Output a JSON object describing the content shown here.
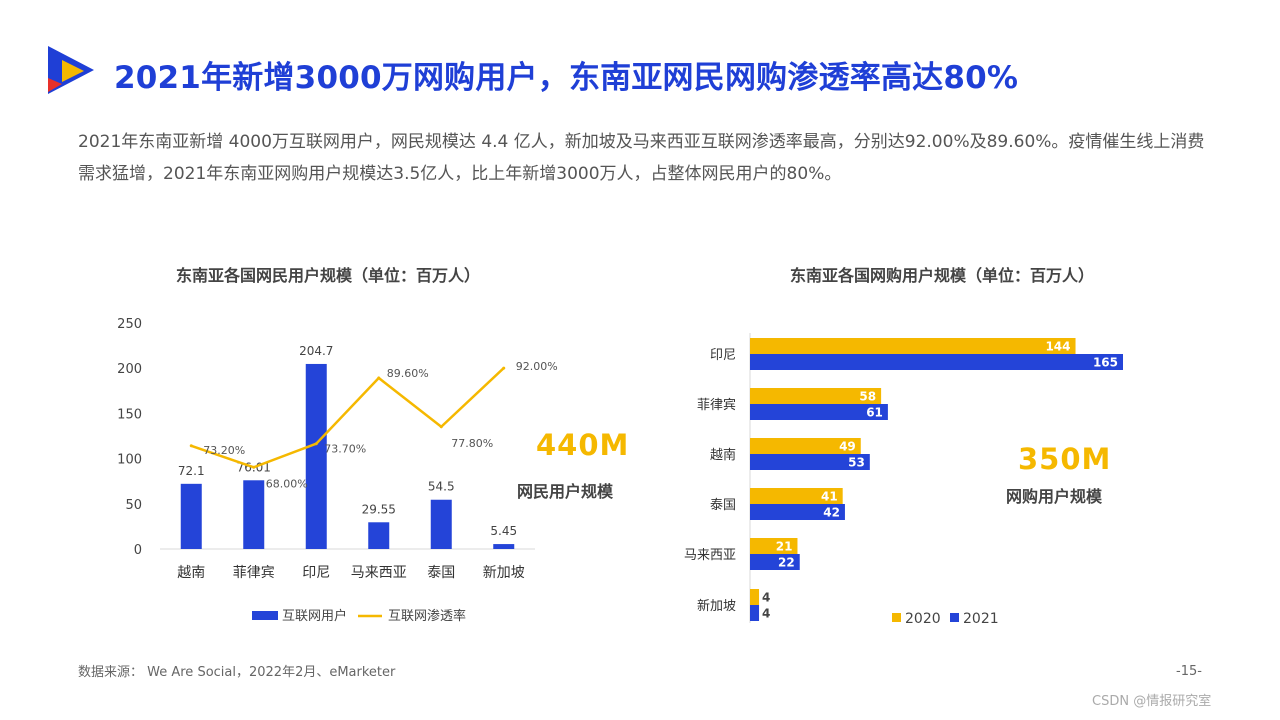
{
  "header": {
    "title": "2021年新增3000万网购用户，东南亚网民网购渗透率高达80%",
    "summary": "2021年东南亚新增 4000万互联网用户，网民规模达 4.4 亿人，新加坡及马来西亚互联网渗透率最高，分别达92.00%及89.60%。疫情催生线上消费需求猛增，2021年东南亚网购用户规模达3.5亿人，比上年新增3000万人，占整体网民用户的80%。"
  },
  "colors": {
    "title_blue": "#1f3fd6",
    "bar_blue": "#2444d8",
    "accent_yellow": "#f5b800",
    "logo_red": "#e8302a"
  },
  "kpi_left": {
    "value": "440M",
    "label": "网民用户规模"
  },
  "kpi_right": {
    "value": "350M",
    "label": "网购用户规模"
  },
  "footer": {
    "source": "数据来源： We Are Social，2022年2月、eMarketer",
    "page": "-15-",
    "watermark": "CSDN @情报研究室"
  },
  "chart_data": [
    {
      "type": "bar",
      "title": "东南亚各国网民用户规模（单位：百万人）",
      "categories": [
        "越南",
        "菲律宾",
        "印尼",
        "马来西亚",
        "泰国",
        "新加坡"
      ],
      "series": [
        {
          "name": "互联网用户",
          "type": "bar",
          "axis": "left",
          "values": [
            72.1,
            76.01,
            204.7,
            29.55,
            54.5,
            5.45
          ],
          "labels": [
            "72.1",
            "76.01",
            "204.7",
            "29.55",
            "54.5",
            "5.45"
          ]
        },
        {
          "name": "互联网渗透率",
          "type": "line",
          "axis": "right",
          "values": [
            73.2,
            68.0,
            73.7,
            89.6,
            77.8,
            92.0
          ],
          "labels": [
            "73.20%",
            "68.00%",
            "73.70%",
            "89.60%",
            "77.80%",
            "92.00%"
          ]
        }
      ],
      "y_ticks": [
        0,
        50,
        100,
        150,
        200,
        250
      ],
      "ylim": [
        0,
        250
      ],
      "legend": "bottom"
    },
    {
      "type": "bar",
      "orientation": "horizontal",
      "title": "东南亚各国网购用户规模（单位：百万人）",
      "categories": [
        "印尼",
        "菲律宾",
        "越南",
        "泰国",
        "马来西亚",
        "新加坡"
      ],
      "series": [
        {
          "name": "2020",
          "values": [
            144,
            58,
            49,
            41,
            21,
            4
          ]
        },
        {
          "name": "2021",
          "values": [
            165,
            61,
            53,
            42,
            22,
            4
          ]
        }
      ],
      "xlim": [
        0,
        165
      ],
      "legend": "bottom"
    }
  ]
}
